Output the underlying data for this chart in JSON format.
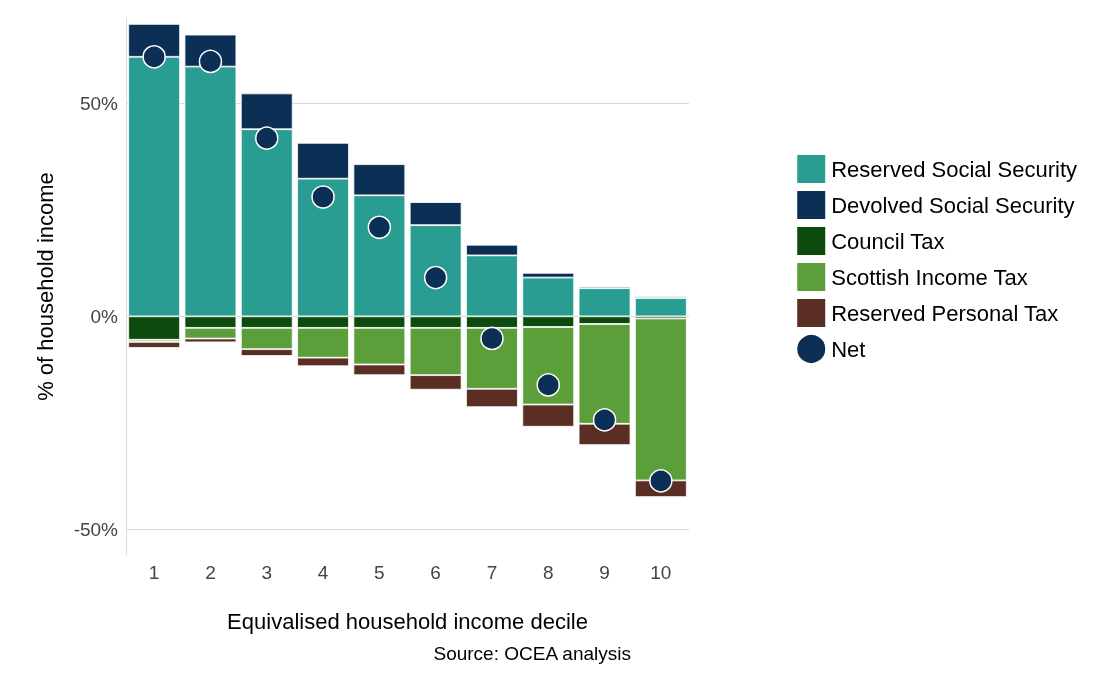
{
  "chart_data": {
    "type": "bar",
    "stacked": true,
    "xlabel": "Equivalised household income decile",
    "ylabel": "% of household income",
    "categories": [
      "1",
      "2",
      "3",
      "4",
      "5",
      "6",
      "7",
      "8",
      "9",
      "10"
    ],
    "series": [
      {
        "name": "Reserved Social Security",
        "color": "#2a9d92",
        "values": [
          60.9,
          58.6,
          43.9,
          32.3,
          28.4,
          21.4,
          14.3,
          9.1,
          6.6,
          4.3
        ]
      },
      {
        "name": "Devolved Social Security",
        "color": "#0b2f55",
        "values": [
          7.7,
          7.5,
          8.4,
          8.4,
          7.3,
          5.4,
          2.5,
          1.1,
          0.4,
          0.4
        ]
      },
      {
        "name": "Council Tax",
        "color": "#0d4a0d",
        "values": [
          -5.5,
          -2.7,
          -2.7,
          -2.7,
          -2.7,
          -2.7,
          -2.7,
          -2.5,
          -1.8,
          -0.5
        ]
      },
      {
        "name": "Scottish Income Tax",
        "color": "#5c9e3a",
        "values": [
          -0.5,
          -2.5,
          -5,
          -7,
          -8.6,
          -11.1,
          -14.3,
          -18.2,
          -23.4,
          -38
        ]
      },
      {
        "name": "Reserved Personal Tax",
        "color": "#5a2e22",
        "values": [
          -1.4,
          -0.9,
          -1.6,
          -2,
          -2.5,
          -3.4,
          -4.3,
          -5.2,
          -5,
          -3.9
        ]
      },
      {
        "name": "Net",
        "type": "scatter",
        "color": "#0b2f55",
        "x": [
          "1",
          "2",
          "3",
          "4",
          "5",
          "6",
          "7",
          "8",
          "9",
          "10"
        ],
        "values": [
          60.9,
          59.8,
          41.8,
          28,
          20.9,
          9.1,
          -5.2,
          -16.1,
          -24.3,
          -38.6
        ]
      }
    ],
    "ylim": [
      -56,
      70
    ],
    "yticks": [
      {
        "value": -50,
        "label": "-50%"
      },
      {
        "value": 0,
        "label": "0%"
      },
      {
        "value": 50,
        "label": "50%"
      }
    ],
    "grid": "y",
    "legend": "right",
    "marker": "circle",
    "annotations": [
      "Source: OCEA analysis"
    ]
  }
}
